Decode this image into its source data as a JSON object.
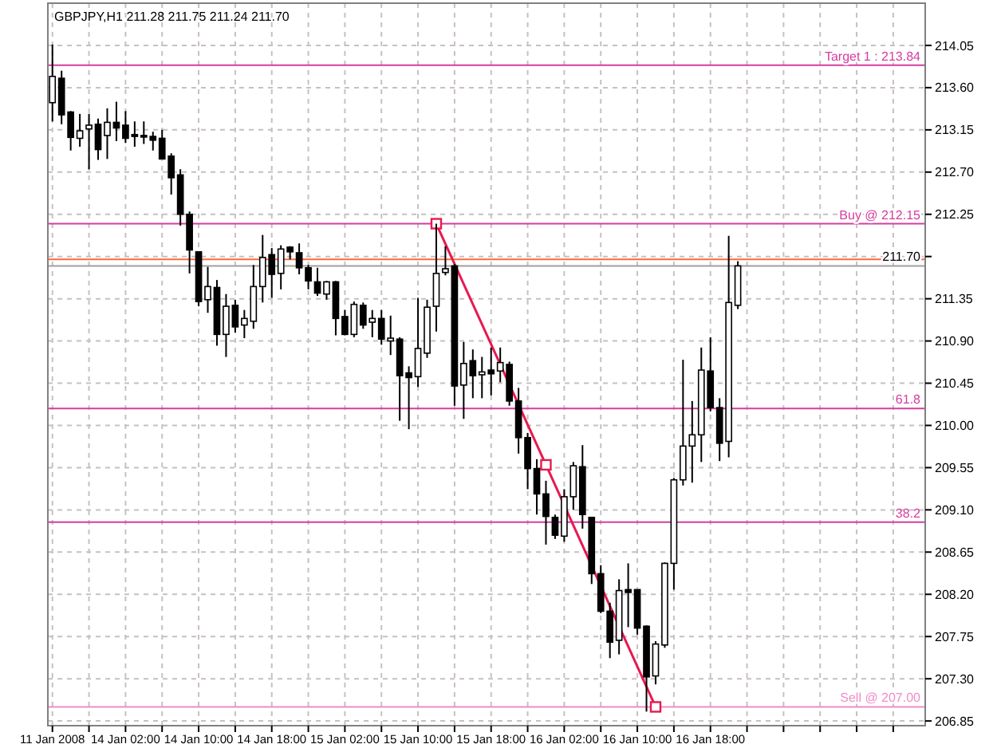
{
  "chart_data": {
    "type": "candlestick",
    "title": "GBPJPY,H1  211.28 211.75 211.24 211.70",
    "categories": [
      "11 Jan 2008",
      null,
      null,
      null,
      null,
      null,
      null,
      null,
      "14 Jan 02:00",
      null,
      null,
      null,
      null,
      null,
      null,
      null,
      "14 Jan 10:00",
      null,
      null,
      null,
      null,
      null,
      null,
      null,
      "14 Jan 18:00",
      null,
      null,
      null,
      null,
      null,
      null,
      null,
      "15 Jan 02:00",
      null,
      null,
      null,
      null,
      null,
      null,
      null,
      "15 Jan 10:00",
      null,
      null,
      null,
      null,
      null,
      null,
      null,
      "15 Jan 18:00",
      null,
      null,
      null,
      null,
      null,
      null,
      null,
      "16 Jan 02:00",
      null,
      null,
      null,
      null,
      null,
      null,
      null,
      "16 Jan 10:00",
      null,
      null,
      null,
      null,
      null,
      null,
      null,
      "16 Jan 18:00",
      null,
      null,
      null,
      null,
      null,
      null,
      null,
      null,
      null,
      null,
      null,
      null,
      null,
      null,
      null,
      null,
      null,
      null,
      null,
      null,
      null,
      null,
      null
    ],
    "ohlc": [
      [
        213.44,
        214.06,
        213.24,
        213.72
      ],
      [
        213.7,
        213.78,
        213.21,
        213.31
      ],
      [
        213.34,
        213.35,
        212.93,
        213.07
      ],
      [
        213.06,
        213.32,
        212.97,
        213.14
      ],
      [
        213.16,
        213.32,
        212.73,
        213.2
      ],
      [
        213.21,
        213.27,
        212.83,
        212.94
      ],
      [
        213.09,
        213.38,
        212.84,
        213.23
      ],
      [
        213.23,
        213.45,
        213.03,
        213.17
      ],
      [
        213.2,
        213.35,
        213.01,
        213.06
      ],
      [
        213.1,
        213.24,
        212.97,
        213.08
      ],
      [
        213.09,
        213.24,
        213.0,
        213.08
      ],
      [
        213.08,
        213.13,
        212.93,
        213.04
      ],
      [
        213.06,
        213.15,
        212.84,
        212.84
      ],
      [
        212.87,
        212.9,
        212.46,
        212.64
      ],
      [
        212.67,
        212.73,
        212.13,
        212.25
      ],
      [
        212.25,
        212.28,
        211.62,
        211.87
      ],
      [
        211.85,
        211.85,
        211.27,
        211.32
      ],
      [
        211.34,
        211.69,
        211.2,
        211.48
      ],
      [
        211.47,
        211.55,
        210.85,
        210.97
      ],
      [
        210.97,
        211.4,
        210.73,
        211.27
      ],
      [
        211.28,
        211.34,
        210.99,
        211.05
      ],
      [
        211.07,
        211.23,
        210.93,
        211.14
      ],
      [
        211.11,
        211.71,
        211.03,
        211.48
      ],
      [
        211.48,
        212.03,
        211.31,
        211.79
      ],
      [
        211.82,
        211.89,
        211.36,
        211.61
      ],
      [
        211.62,
        211.92,
        211.45,
        211.88
      ],
      [
        211.9,
        211.91,
        211.77,
        211.85
      ],
      [
        211.84,
        211.94,
        211.61,
        211.68
      ],
      [
        211.68,
        211.71,
        211.45,
        211.54
      ],
      [
        211.53,
        211.68,
        211.38,
        211.41
      ],
      [
        211.4,
        211.54,
        211.34,
        211.53
      ],
      [
        211.53,
        211.54,
        210.96,
        211.14
      ],
      [
        211.16,
        211.23,
        210.96,
        210.97
      ],
      [
        210.97,
        211.32,
        210.94,
        211.29
      ],
      [
        211.28,
        211.31,
        211.03,
        211.07
      ],
      [
        211.1,
        211.23,
        210.94,
        211.14
      ],
      [
        211.14,
        211.23,
        210.86,
        210.92
      ],
      [
        210.9,
        211.17,
        210.75,
        210.93
      ],
      [
        210.92,
        210.94,
        210.05,
        210.53
      ],
      [
        210.56,
        210.63,
        209.96,
        210.51
      ],
      [
        210.52,
        211.36,
        210.41,
        210.82
      ],
      [
        210.77,
        211.34,
        210.72,
        211.26
      ],
      [
        211.27,
        212.15,
        211.0,
        211.62
      ],
      [
        211.63,
        211.91,
        211.6,
        211.67
      ],
      [
        211.7,
        211.72,
        210.21,
        210.42
      ],
      [
        210.43,
        210.89,
        210.07,
        210.66
      ],
      [
        210.69,
        210.81,
        210.29,
        210.53
      ],
      [
        210.54,
        210.73,
        210.29,
        210.57
      ],
      [
        210.59,
        210.83,
        210.32,
        210.55
      ],
      [
        210.58,
        210.83,
        210.46,
        210.67
      ],
      [
        210.65,
        210.68,
        210.21,
        210.26
      ],
      [
        210.26,
        210.4,
        209.7,
        209.87
      ],
      [
        209.87,
        209.92,
        209.32,
        209.54
      ],
      [
        209.54,
        209.64,
        209.05,
        209.27
      ],
      [
        209.27,
        209.41,
        208.73,
        209.03
      ],
      [
        209.02,
        209.05,
        208.79,
        208.83
      ],
      [
        208.82,
        209.32,
        208.76,
        209.24
      ],
      [
        209.24,
        209.61,
        209.1,
        209.57
      ],
      [
        209.56,
        209.79,
        208.9,
        209.05
      ],
      [
        209.02,
        209.02,
        208.31,
        208.42
      ],
      [
        208.42,
        208.51,
        208.0,
        208.02
      ],
      [
        208.02,
        208.11,
        207.52,
        207.69
      ],
      [
        207.71,
        208.36,
        207.56,
        208.24
      ],
      [
        208.25,
        208.53,
        207.85,
        208.22
      ],
      [
        208.25,
        208.25,
        207.77,
        207.84
      ],
      [
        207.86,
        207.87,
        206.95,
        207.32
      ],
      [
        207.33,
        207.7,
        207.24,
        207.67
      ],
      [
        207.66,
        208.54,
        207.63,
        208.53
      ],
      [
        208.53,
        209.44,
        208.25,
        209.42
      ],
      [
        209.42,
        210.7,
        209.36,
        209.78
      ],
      [
        209.78,
        210.26,
        209.39,
        209.9
      ],
      [
        209.9,
        210.83,
        209.61,
        210.59
      ],
      [
        210.58,
        210.94,
        210.15,
        210.19
      ],
      [
        210.19,
        210.29,
        209.62,
        209.81
      ],
      [
        209.83,
        212.02,
        209.66,
        211.31
      ],
      [
        211.28,
        211.75,
        211.24,
        211.7
      ],
      null,
      null,
      null,
      null,
      null,
      null,
      null,
      null,
      null,
      null,
      null,
      null,
      null,
      null,
      null,
      null,
      null,
      null,
      null,
      null
    ],
    "series": [
      {
        "type": "line",
        "color": "#e8194f",
        "marker": "square",
        "values": [
          null,
          null,
          null,
          null,
          null,
          null,
          null,
          null,
          null,
          null,
          null,
          null,
          null,
          null,
          null,
          null,
          null,
          null,
          null,
          null,
          null,
          null,
          null,
          null,
          null,
          null,
          null,
          null,
          null,
          null,
          null,
          null,
          null,
          null,
          null,
          null,
          null,
          null,
          null,
          null,
          null,
          null,
          212.15,
          null,
          null,
          null,
          null,
          null,
          null,
          null,
          null,
          null,
          null,
          null,
          209.58,
          null,
          null,
          null,
          null,
          null,
          null,
          null,
          null,
          null,
          null,
          null,
          207.0,
          null,
          null,
          null,
          null,
          null,
          null,
          null,
          null,
          null,
          null,
          null,
          null,
          null,
          null,
          null,
          null,
          null,
          null,
          null,
          null,
          null,
          null,
          null,
          null,
          null,
          null,
          null,
          null,
          null
        ]
      }
    ],
    "annotations": [
      {
        "text": "61.8",
        "y": 210.18
      },
      {
        "text": "38.2",
        "y": 208.97
      }
    ],
    "ylim": [
      206.8,
      214.5
    ],
    "yticks": [
      {
        "value": 206.85,
        "label": "206.85"
      },
      {
        "value": 207.3,
        "label": "207.30"
      },
      {
        "value": 207.75,
        "label": "207.75"
      },
      {
        "value": 208.2,
        "label": "208.20"
      },
      {
        "value": 208.65,
        "label": "208.65"
      },
      {
        "value": 209.1,
        "label": "209.10"
      },
      {
        "value": 209.55,
        "label": "209.55"
      },
      {
        "value": 210.0,
        "label": "210.00"
      },
      {
        "value": 210.45,
        "label": "210.45"
      },
      {
        "value": 210.9,
        "label": "210.90"
      },
      {
        "value": 211.35,
        "label": "211.35"
      },
      {
        "value": 211.8,
        "label": null
      },
      {
        "value": 212.25,
        "label": "212.25"
      },
      {
        "value": 212.7,
        "label": "212.70"
      },
      {
        "value": 213.15,
        "label": "213.15"
      },
      {
        "value": 213.6,
        "label": "213.60"
      },
      {
        "value": 214.05,
        "label": "214.05"
      }
    ],
    "grid": true,
    "ref_lines": [
      {
        "axis": "y",
        "value": 213.84,
        "label": "Target 1 : 213.84",
        "color": "#d63ca0"
      },
      {
        "axis": "y",
        "value": 212.15,
        "label": "Buy @ 212.15",
        "color": "#d63ca0"
      },
      {
        "axis": "y",
        "value": 210.18,
        "color": "#d63ca0"
      },
      {
        "axis": "y",
        "value": 208.97,
        "color": "#d63ca0"
      },
      {
        "axis": "y",
        "value": 207.0,
        "label": "Sell @ 207.00",
        "color": "#f08cc8"
      },
      {
        "axis": "y",
        "value": 211.77,
        "color": "#ff6a3d"
      },
      {
        "axis": "y",
        "value": 211.7,
        "label": "211.70",
        "color": "#a0a0a0"
      }
    ]
  }
}
